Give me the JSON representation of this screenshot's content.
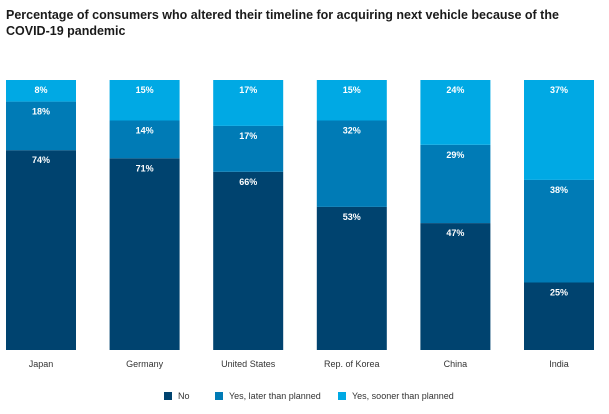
{
  "chart_data": {
    "type": "bar",
    "stacked": true,
    "percent": true,
    "title": "Percentage of consumers who altered their timeline for acquiring next vehicle because of the COVID-19 pandemic",
    "categories": [
      "Japan",
      "Germany",
      "United States",
      "Rep. of Korea",
      "China",
      "India"
    ],
    "series": [
      {
        "name": "No",
        "color": "#00436F",
        "values": [
          74,
          71,
          66,
          53,
          47,
          25
        ]
      },
      {
        "name": "Yes, later than planned",
        "color": "#007BB6",
        "values": [
          18,
          14,
          17,
          32,
          29,
          38
        ]
      },
      {
        "name": "Yes, sooner than planned",
        "color": "#00A9E4",
        "values": [
          8,
          15,
          17,
          15,
          24,
          37
        ]
      }
    ],
    "ylim": [
      0,
      100
    ],
    "grid": false,
    "legend_position": "bottom-center"
  }
}
